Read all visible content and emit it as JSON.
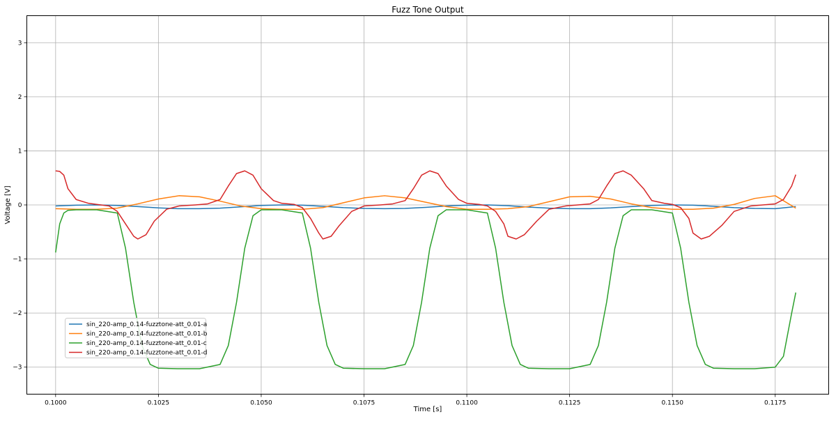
{
  "chart_data": {
    "type": "line",
    "title": "Fuzz Tone Output",
    "xlabel": "Time [s]",
    "ylabel": "Voltage [V]",
    "xlim": [
      0.0993,
      0.1188
    ],
    "ylim": [
      -3.5,
      3.5
    ],
    "xticks": [
      0.1,
      0.1025,
      0.105,
      0.1075,
      0.11,
      0.1125,
      0.115,
      0.1175
    ],
    "xtick_labels": [
      "0.1000",
      "0.1025",
      "0.1050",
      "0.1075",
      "0.1100",
      "0.1125",
      "0.1150",
      "0.1175"
    ],
    "yticks": [
      -3,
      -2,
      -1,
      0,
      1,
      2,
      3
    ],
    "ytick_labels": [
      "−3",
      "−2",
      "−1",
      "0",
      "1",
      "2",
      "3"
    ],
    "grid": true,
    "legend_position": "lower-left",
    "series": [
      {
        "name": "sin_220-amp_0.14-fuzztone-att_0.01-a",
        "color": "#1f77b4",
        "x": [
          0.1,
          0.1005,
          0.101,
          0.1015,
          0.102,
          0.1025,
          0.103,
          0.1035,
          0.104,
          0.1045,
          0.105,
          0.1055,
          0.106,
          0.1065,
          0.107,
          0.1075,
          0.108,
          0.1085,
          0.109,
          0.1095,
          0.11,
          0.1105,
          0.111,
          0.1115,
          0.112,
          0.1125,
          0.113,
          0.1135,
          0.114,
          0.1145,
          0.115,
          0.1155,
          0.116,
          0.1165,
          0.117,
          0.1175,
          0.118
        ],
        "y": [
          -0.02,
          -0.005,
          0.0,
          -0.01,
          -0.03,
          -0.055,
          -0.07,
          -0.07,
          -0.06,
          -0.035,
          -0.01,
          0.0,
          -0.005,
          -0.025,
          -0.05,
          -0.065,
          -0.07,
          -0.065,
          -0.045,
          -0.02,
          -0.005,
          0.0,
          -0.015,
          -0.04,
          -0.06,
          -0.07,
          -0.07,
          -0.055,
          -0.03,
          -0.01,
          0.0,
          -0.005,
          -0.025,
          -0.05,
          -0.065,
          -0.07,
          -0.03
        ]
      },
      {
        "name": "sin_220-amp_0.14-fuzztone-att_0.01-b",
        "color": "#ff7f0e",
        "x": [
          0.1,
          0.1005,
          0.101,
          0.1015,
          0.102,
          0.1025,
          0.103,
          0.1035,
          0.104,
          0.1045,
          0.105,
          0.1055,
          0.106,
          0.1065,
          0.107,
          0.1075,
          0.108,
          0.1085,
          0.109,
          0.1095,
          0.11,
          0.1105,
          0.111,
          0.1115,
          0.112,
          0.1125,
          0.113,
          0.1135,
          0.114,
          0.1145,
          0.115,
          0.1155,
          0.116,
          0.1165,
          0.117,
          0.1175,
          0.118
        ],
        "y": [
          -0.07,
          -0.08,
          -0.08,
          -0.06,
          0.02,
          0.11,
          0.17,
          0.15,
          0.07,
          -0.02,
          -0.07,
          -0.08,
          -0.08,
          -0.05,
          0.04,
          0.13,
          0.17,
          0.13,
          0.05,
          -0.03,
          -0.08,
          -0.08,
          -0.07,
          -0.03,
          0.06,
          0.15,
          0.16,
          0.11,
          0.02,
          -0.05,
          -0.08,
          -0.08,
          -0.06,
          0.01,
          0.12,
          0.17,
          -0.06
        ]
      },
      {
        "name": "sin_220-amp_0.14-fuzztone-att_0.01-c",
        "color": "#2ca02c",
        "x": [
          0.1,
          0.1001,
          0.1002,
          0.1003,
          0.1005,
          0.101,
          0.1015,
          0.1017,
          0.1019,
          0.1021,
          0.1023,
          0.1025,
          0.103,
          0.1035,
          0.104,
          0.1042,
          0.1044,
          0.1046,
          0.1048,
          0.105,
          0.1055,
          0.106,
          0.1062,
          0.1064,
          0.1066,
          0.1068,
          0.107,
          0.1075,
          0.108,
          0.1085,
          0.1087,
          0.1089,
          0.1091,
          0.1093,
          0.1095,
          0.11,
          0.1105,
          0.1107,
          0.1109,
          0.1111,
          0.1113,
          0.1115,
          0.112,
          0.1125,
          0.113,
          0.1132,
          0.1134,
          0.1136,
          0.1138,
          0.114,
          0.1145,
          0.115,
          0.1152,
          0.1154,
          0.1156,
          0.1158,
          0.116,
          0.1165,
          0.117,
          0.1175,
          0.1177,
          0.1178,
          0.1179,
          0.118
        ],
        "y": [
          -0.88,
          -0.35,
          -0.15,
          -0.1,
          -0.09,
          -0.09,
          -0.15,
          -0.8,
          -1.8,
          -2.6,
          -2.95,
          -3.02,
          -3.03,
          -3.03,
          -2.95,
          -2.6,
          -1.8,
          -0.8,
          -0.2,
          -0.09,
          -0.09,
          -0.15,
          -0.8,
          -1.8,
          -2.6,
          -2.95,
          -3.02,
          -3.03,
          -3.03,
          -2.95,
          -2.6,
          -1.8,
          -0.8,
          -0.2,
          -0.09,
          -0.09,
          -0.15,
          -0.8,
          -1.8,
          -2.6,
          -2.95,
          -3.02,
          -3.03,
          -3.03,
          -2.95,
          -2.6,
          -1.8,
          -0.8,
          -0.2,
          -0.09,
          -0.09,
          -0.15,
          -0.8,
          -1.8,
          -2.6,
          -2.95,
          -3.02,
          -3.03,
          -3.03,
          -3.0,
          -2.8,
          -2.4,
          -2.0,
          -1.62
        ]
      },
      {
        "name": "sin_220-amp_0.14-fuzztone-att_0.01-d",
        "color": "#d62728",
        "x": [
          0.1,
          0.1001,
          0.1002,
          0.1003,
          0.1005,
          0.1008,
          0.101,
          0.1013,
          0.1015,
          0.1017,
          0.1019,
          0.102,
          0.1022,
          0.1024,
          0.1027,
          0.103,
          0.1034,
          0.1037,
          0.104,
          0.1042,
          0.1044,
          0.1046,
          0.1048,
          0.105,
          0.1053,
          0.1055,
          0.1058,
          0.106,
          0.1062,
          0.1064,
          0.1065,
          0.1067,
          0.1069,
          0.1072,
          0.1075,
          0.1079,
          0.1082,
          0.1085,
          0.1087,
          0.1089,
          0.1091,
          0.1093,
          0.1095,
          0.1098,
          0.11,
          0.1103,
          0.1105,
          0.1107,
          0.1109,
          0.111,
          0.1112,
          0.1114,
          0.1117,
          0.112,
          0.1124,
          0.1127,
          0.113,
          0.1132,
          0.1134,
          0.1136,
          0.1138,
          0.114,
          0.1143,
          0.1145,
          0.1148,
          0.115,
          0.1152,
          0.1154,
          0.1155,
          0.1157,
          0.1159,
          0.1162,
          0.1165,
          0.1169,
          0.1172,
          0.1175,
          0.1177,
          0.1179,
          0.118
        ],
        "y": [
          0.63,
          0.62,
          0.55,
          0.3,
          0.1,
          0.03,
          0.01,
          -0.02,
          -0.12,
          -0.35,
          -0.58,
          -0.63,
          -0.55,
          -0.3,
          -0.08,
          -0.02,
          0.0,
          0.02,
          0.1,
          0.35,
          0.58,
          0.63,
          0.55,
          0.3,
          0.08,
          0.03,
          0.01,
          -0.05,
          -0.25,
          -0.52,
          -0.63,
          -0.58,
          -0.38,
          -0.12,
          -0.02,
          0.0,
          0.02,
          0.08,
          0.3,
          0.55,
          0.63,
          0.58,
          0.35,
          0.1,
          0.03,
          0.01,
          -0.02,
          -0.12,
          -0.35,
          -0.58,
          -0.63,
          -0.55,
          -0.3,
          -0.08,
          -0.02,
          0.0,
          0.02,
          0.1,
          0.35,
          0.58,
          0.63,
          0.55,
          0.3,
          0.08,
          0.03,
          0.01,
          -0.05,
          -0.25,
          -0.52,
          -0.63,
          -0.58,
          -0.38,
          -0.12,
          -0.02,
          0.0,
          0.02,
          0.1,
          0.35,
          0.56
        ]
      }
    ]
  }
}
